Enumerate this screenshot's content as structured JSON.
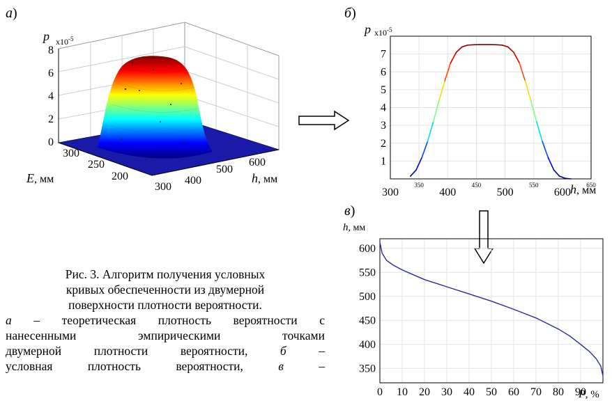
{
  "panels": {
    "a": {
      "letter": "a",
      "paren": ")"
    },
    "b": {
      "letter": "б",
      "paren": ")"
    },
    "v": {
      "letter": "в",
      "paren": ")"
    }
  },
  "chart_data": [
    {
      "id": "a",
      "type": "surface3d",
      "zlabel": "p",
      "zscale": "x10",
      "zscale_exp": "-5",
      "zticks": [
        "0",
        "2",
        "4",
        "6",
        "8"
      ],
      "ylabel": "E",
      "ylabel_unit": ", мм",
      "yticks": [
        "300",
        "250",
        "200"
      ],
      "xlabel": "h",
      "xlabel_unit": ", мм",
      "xticks": [
        "300",
        "400",
        "500",
        "600"
      ],
      "colormap": [
        "#00007f",
        "#0000ff",
        "#00ffff",
        "#ffff00",
        "#ff0000",
        "#7f0000"
      ]
    },
    {
      "id": "b",
      "type": "line",
      "ylabel": "p",
      "yscale": "x10",
      "yscale_exp": "-5",
      "xlabel": "h",
      "xlabel_unit": ", мм",
      "xlim": [
        300,
        650
      ],
      "ylim": [
        0,
        8
      ],
      "yticks": [
        "1",
        "2",
        "3",
        "4",
        "5",
        "6",
        "7"
      ],
      "xticks_major": [
        "300",
        "400",
        "500",
        "600"
      ],
      "xticks_minor": [
        "350",
        "450",
        "550",
        "650"
      ],
      "grid": true,
      "x": [
        335,
        345,
        355,
        365,
        375,
        385,
        395,
        405,
        415,
        425,
        435,
        445,
        455,
        465,
        475,
        485,
        495,
        505,
        515,
        525,
        535,
        545,
        555,
        565,
        575,
        585,
        595,
        605,
        615
      ],
      "y": [
        0.15,
        0.5,
        1.2,
        2.1,
        3.2,
        4.4,
        5.5,
        6.5,
        7.1,
        7.4,
        7.5,
        7.52,
        7.53,
        7.53,
        7.53,
        7.52,
        7.5,
        7.4,
        7.1,
        6.5,
        5.5,
        4.4,
        3.2,
        2.1,
        1.2,
        0.5,
        0.15,
        0.03,
        0.0
      ]
    },
    {
      "id": "v",
      "type": "line",
      "ylabel": "h",
      "ylabel_unit": ", мм",
      "xlabel": "P",
      "xlabel_unit": ", %",
      "xlim": [
        0,
        100
      ],
      "ylim": [
        320,
        620
      ],
      "yticks": [
        "350",
        "400",
        "450",
        "500",
        "550",
        "600"
      ],
      "xticks": [
        "0",
        "10",
        "20",
        "30",
        "40",
        "50",
        "60",
        "70",
        "80",
        "90"
      ],
      "grid": true,
      "color": "#2a2aa0",
      "x": [
        0,
        1,
        3,
        6,
        10,
        15,
        20,
        30,
        40,
        50,
        60,
        70,
        80,
        85,
        90,
        94,
        97,
        99,
        100
      ],
      "y": [
        612,
        590,
        575,
        565,
        555,
        545,
        535,
        520,
        505,
        490,
        473,
        455,
        432,
        418,
        400,
        385,
        370,
        355,
        335
      ]
    }
  ],
  "caption": {
    "line1": "Рис. 3. Алгоритм получения условных",
    "line2": "кривых обеспеченности из двумерной",
    "line3": "поверхности плотности вероятности.",
    "line4_letter": "а",
    "line4_rest": " – теоретическая плотность вероятности с",
    "line5": "нанесенными эмпирическими точками",
    "line6_text": "двумерной плотности вероятности, ",
    "line6_letter": "б",
    "line6_dash": " –",
    "line7_text": "условная плотность вероятности, ",
    "line7_letter": "в",
    "line7_dash": " –"
  }
}
